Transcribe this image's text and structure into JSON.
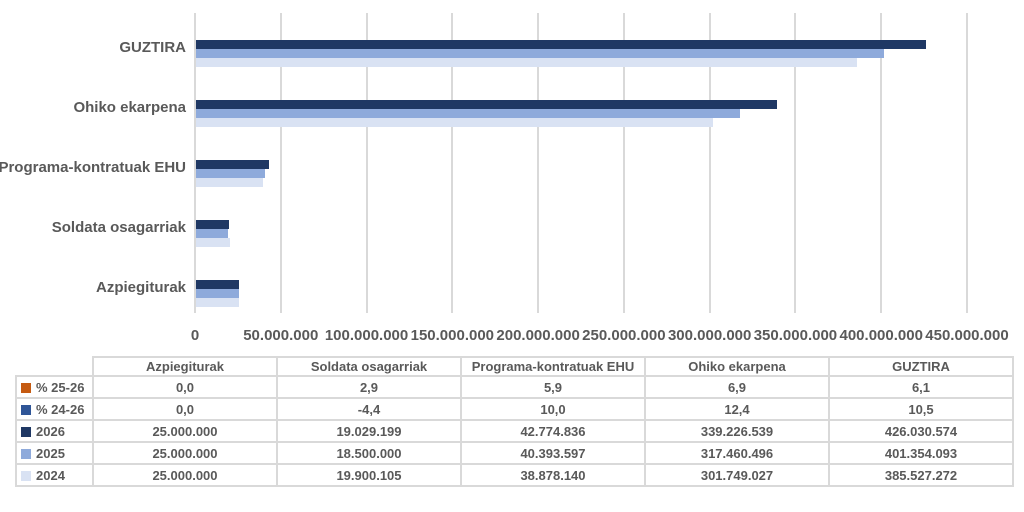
{
  "chart_data": {
    "type": "bar",
    "orientation": "horizontal-grouped",
    "title": "",
    "categories": [
      "GUZTIRA",
      "Ohiko ekarpena",
      "Programa-kontratuak EHU",
      "Soldata osagarriak",
      "Azpiegiturak"
    ],
    "series": [
      {
        "name": "2026",
        "color": "#1F3864",
        "values": [
          426030574,
          339226539,
          42774836,
          19029199,
          25000000
        ]
      },
      {
        "name": "2025",
        "color": "#8EAADB",
        "values": [
          401354093,
          317460496,
          40393597,
          18500000,
          25000000
        ]
      },
      {
        "name": "2024",
        "color": "#D9E2F3",
        "values": [
          385527272,
          301749027,
          38878140,
          19900105,
          25000000
        ]
      }
    ],
    "x_axis": {
      "min": 0,
      "max": 450000000,
      "tick_interval": 50000000,
      "tick_labels": [
        "0",
        "50.000.000",
        "100.000.000",
        "150.000.000",
        "200.000.000",
        "250.000.000",
        "300.000.000",
        "350.000.000",
        "400.000.000",
        "450.000.000"
      ]
    },
    "gridlines": true,
    "legend_position": "table-left"
  },
  "table": {
    "column_headers": [
      "",
      "Azpiegiturak",
      "Soldata osagarriak",
      "Programa-kontratuak EHU",
      "Ohiko ekarpena",
      "GUZTIRA"
    ],
    "rows": [
      {
        "label": "% 25-26",
        "marker_color": "#C55A11",
        "values": [
          "0,0",
          "2,9",
          "5,9",
          "6,9",
          "6,1"
        ]
      },
      {
        "label": "% 24-26",
        "marker_color": "#2F5597",
        "values": [
          "0,0",
          "-4,4",
          "10,0",
          "12,4",
          "10,5"
        ]
      },
      {
        "label": "2026",
        "marker_color": "#1F3864",
        "values": [
          "25.000.000",
          "19.029.199",
          "42.774.836",
          "339.226.539",
          "426.030.574"
        ]
      },
      {
        "label": "2025",
        "marker_color": "#8EAADB",
        "values": [
          "25.000.000",
          "18.500.000",
          "40.393.597",
          "317.460.496",
          "401.354.093"
        ]
      },
      {
        "label": "2024",
        "marker_color": "#D9E2F3",
        "values": [
          "25.000.000",
          "19.900.105",
          "38.878.140",
          "301.749.027",
          "385.527.272"
        ]
      }
    ]
  },
  "colors": {
    "text": "#595959",
    "gridline": "#D9D9D9",
    "table_border": "#D9D9D9",
    "background": "#FFFFFF"
  }
}
